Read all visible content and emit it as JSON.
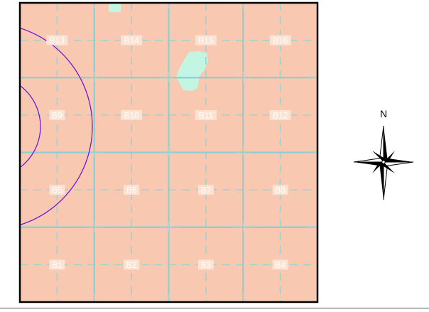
{
  "map": {
    "grid_cells": [
      {
        "id": "B13"
      },
      {
        "id": "B14"
      },
      {
        "id": "B15"
      },
      {
        "id": "B16"
      },
      {
        "id": "B9"
      },
      {
        "id": "B10"
      },
      {
        "id": "B11"
      },
      {
        "id": "B12"
      },
      {
        "id": "B5"
      },
      {
        "id": "B6"
      },
      {
        "id": "B7"
      },
      {
        "id": "B8"
      },
      {
        "id": "B1"
      },
      {
        "id": "B2"
      },
      {
        "id": "B3"
      },
      {
        "id": "B4"
      }
    ],
    "faint_labels": [
      "REDW",
      "NERW"
    ],
    "colors": {
      "land": "#f8c8b0",
      "grid_solid": "#8ccfd0",
      "grid_dashed": "#9fd2d4",
      "water": "#c2f5e2",
      "label_bg": "#fbe2d2",
      "ring": "#6a0dd8",
      "border": "#000000"
    }
  },
  "compass": {
    "north_label": "N",
    "icon": "north-arrow-compass-rose-icon"
  }
}
